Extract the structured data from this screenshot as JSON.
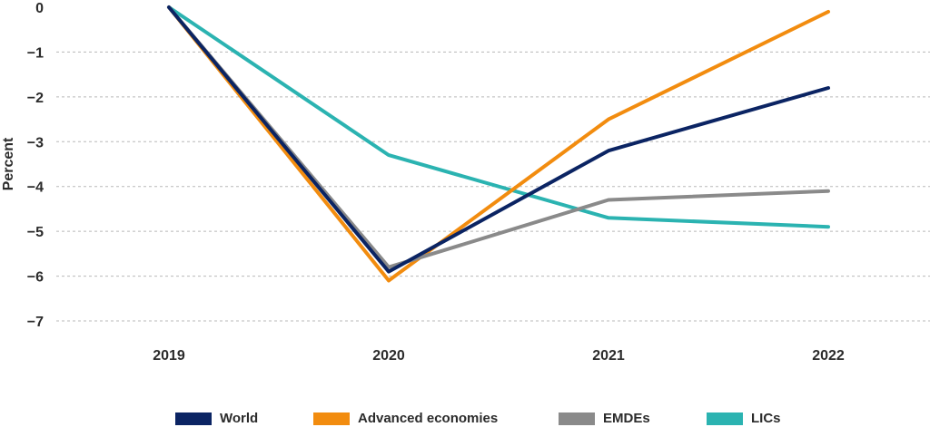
{
  "chart_data": {
    "type": "line",
    "categories": [
      "2019",
      "2020",
      "2021",
      "2022"
    ],
    "ylabel": "Percent",
    "ylim": [
      -7,
      0
    ],
    "yticks": [
      0,
      -1,
      -2,
      -3,
      -4,
      -5,
      -6,
      -7
    ],
    "ytick_labels": [
      "0",
      "−1",
      "−2",
      "−3",
      "−4",
      "−5",
      "−6",
      "−7"
    ],
    "grid": "horizontal dashed",
    "legend_position": "bottom",
    "series": [
      {
        "name": "World",
        "color": "#0b2463",
        "values": [
          0,
          -5.9,
          -3.2,
          -1.8
        ]
      },
      {
        "name": "Advanced economies",
        "color": "#f28c0f",
        "values": [
          0,
          -6.1,
          -2.5,
          -0.1
        ]
      },
      {
        "name": "EMDEs",
        "color": "#8a8a8a",
        "values": [
          0,
          -5.8,
          -4.3,
          -4.1
        ]
      },
      {
        "name": "LICs",
        "color": "#2bb3b1",
        "values": [
          0,
          -3.3,
          -4.7,
          -4.9
        ]
      }
    ]
  }
}
